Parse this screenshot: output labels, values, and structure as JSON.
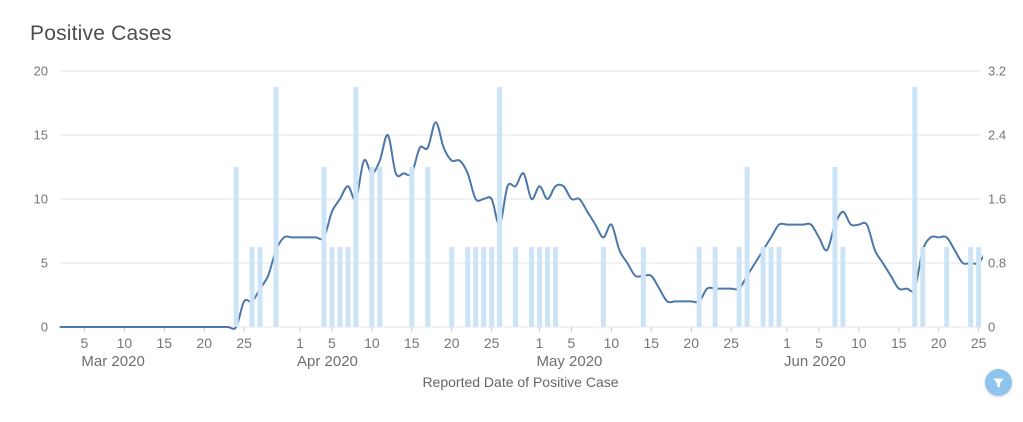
{
  "title": "Positive Cases",
  "x_axis_label": "Reported Date of Positive Case",
  "filter_button": {
    "icon": "funnel-icon",
    "color": "#8fc4ec"
  },
  "colors": {
    "line": "#4b77a9",
    "bar": "#cde4f7",
    "grid": "#e4e4e4",
    "tick_mark": "#cccccc",
    "axis_text": "#767676",
    "title_text": "#4e4e4e",
    "axis_title_text": "#666666"
  },
  "chart_data": {
    "type": "line+bar",
    "title": "Positive Cases",
    "xlabel": "Reported Date of Positive Case",
    "grid": "horizontal",
    "legend": "none",
    "x_range": [
      "2020-03-02",
      "2020-06-26"
    ],
    "y_left": {
      "min": 0,
      "max": 20,
      "ticks": [
        0,
        5,
        10,
        15,
        20
      ]
    },
    "y_right": {
      "min": 0,
      "max": 3.2,
      "ticks": [
        0,
        0.8,
        1.6,
        2.4,
        3.2
      ]
    },
    "x_months": [
      {
        "label": "Mar 2020",
        "month": 3,
        "day_ticks": [
          5,
          10,
          15,
          20,
          25
        ]
      },
      {
        "label": "Apr 2020",
        "month": 4,
        "day_ticks": [
          1,
          5,
          10,
          15,
          20,
          25
        ]
      },
      {
        "label": "May 2020",
        "month": 5,
        "day_ticks": [
          1,
          5,
          10,
          15,
          20,
          25
        ]
      },
      {
        "label": "Jun 2020",
        "month": 6,
        "day_ticks": [
          1,
          5,
          10,
          15,
          20,
          25
        ]
      }
    ],
    "series": [
      {
        "name": "positive-cases-line",
        "type": "line",
        "axis": "left",
        "color": "#4b77a9",
        "points": [
          [
            "2020-03-02",
            0
          ],
          [
            "2020-03-03",
            0
          ],
          [
            "2020-03-04",
            0
          ],
          [
            "2020-03-05",
            0
          ],
          [
            "2020-03-06",
            0
          ],
          [
            "2020-03-07",
            0
          ],
          [
            "2020-03-08",
            0
          ],
          [
            "2020-03-09",
            0
          ],
          [
            "2020-03-10",
            0
          ],
          [
            "2020-03-11",
            0
          ],
          [
            "2020-03-12",
            0
          ],
          [
            "2020-03-13",
            0
          ],
          [
            "2020-03-14",
            0
          ],
          [
            "2020-03-15",
            0
          ],
          [
            "2020-03-16",
            0
          ],
          [
            "2020-03-17",
            0
          ],
          [
            "2020-03-18",
            0
          ],
          [
            "2020-03-19",
            0
          ],
          [
            "2020-03-20",
            0
          ],
          [
            "2020-03-21",
            0
          ],
          [
            "2020-03-22",
            0
          ],
          [
            "2020-03-23",
            0
          ],
          [
            "2020-03-24",
            0
          ],
          [
            "2020-03-25",
            2
          ],
          [
            "2020-03-26",
            2
          ],
          [
            "2020-03-27",
            3
          ],
          [
            "2020-03-28",
            4
          ],
          [
            "2020-03-29",
            6
          ],
          [
            "2020-03-30",
            7
          ],
          [
            "2020-03-31",
            7
          ],
          [
            "2020-04-01",
            7
          ],
          [
            "2020-04-02",
            7
          ],
          [
            "2020-04-03",
            7
          ],
          [
            "2020-04-04",
            7
          ],
          [
            "2020-04-05",
            9
          ],
          [
            "2020-04-06",
            10
          ],
          [
            "2020-04-07",
            11
          ],
          [
            "2020-04-08",
            10
          ],
          [
            "2020-04-09",
            13
          ],
          [
            "2020-04-10",
            12
          ],
          [
            "2020-04-11",
            13
          ],
          [
            "2020-04-12",
            15
          ],
          [
            "2020-04-13",
            12
          ],
          [
            "2020-04-14",
            12
          ],
          [
            "2020-04-15",
            12
          ],
          [
            "2020-04-16",
            14
          ],
          [
            "2020-04-17",
            14
          ],
          [
            "2020-04-18",
            16
          ],
          [
            "2020-04-19",
            14
          ],
          [
            "2020-04-20",
            13
          ],
          [
            "2020-04-21",
            13
          ],
          [
            "2020-04-22",
            12
          ],
          [
            "2020-04-23",
            10
          ],
          [
            "2020-04-24",
            10
          ],
          [
            "2020-04-25",
            10
          ],
          [
            "2020-04-26",
            8
          ],
          [
            "2020-04-27",
            11
          ],
          [
            "2020-04-28",
            11
          ],
          [
            "2020-04-29",
            12
          ],
          [
            "2020-04-30",
            10
          ],
          [
            "2020-05-01",
            11
          ],
          [
            "2020-05-02",
            10
          ],
          [
            "2020-05-03",
            11
          ],
          [
            "2020-05-04",
            11
          ],
          [
            "2020-05-05",
            10
          ],
          [
            "2020-05-06",
            10
          ],
          [
            "2020-05-07",
            9
          ],
          [
            "2020-05-08",
            8
          ],
          [
            "2020-05-09",
            7
          ],
          [
            "2020-05-10",
            8
          ],
          [
            "2020-05-11",
            6
          ],
          [
            "2020-05-12",
            5
          ],
          [
            "2020-05-13",
            4
          ],
          [
            "2020-05-14",
            4
          ],
          [
            "2020-05-15",
            4
          ],
          [
            "2020-05-16",
            3
          ],
          [
            "2020-05-17",
            2
          ],
          [
            "2020-05-18",
            2
          ],
          [
            "2020-05-19",
            2
          ],
          [
            "2020-05-20",
            2
          ],
          [
            "2020-05-21",
            2
          ],
          [
            "2020-05-22",
            3
          ],
          [
            "2020-05-23",
            3
          ],
          [
            "2020-05-24",
            3
          ],
          [
            "2020-05-25",
            3
          ],
          [
            "2020-05-26",
            3
          ],
          [
            "2020-05-27",
            4
          ],
          [
            "2020-05-28",
            5
          ],
          [
            "2020-05-29",
            6
          ],
          [
            "2020-05-30",
            7
          ],
          [
            "2020-05-31",
            8
          ],
          [
            "2020-06-01",
            8
          ],
          [
            "2020-06-02",
            8
          ],
          [
            "2020-06-03",
            8
          ],
          [
            "2020-06-04",
            8
          ],
          [
            "2020-06-05",
            7
          ],
          [
            "2020-06-06",
            6
          ],
          [
            "2020-06-07",
            8
          ],
          [
            "2020-06-08",
            9
          ],
          [
            "2020-06-09",
            8
          ],
          [
            "2020-06-10",
            8
          ],
          [
            "2020-06-11",
            8
          ],
          [
            "2020-06-12",
            6
          ],
          [
            "2020-06-13",
            5
          ],
          [
            "2020-06-14",
            4
          ],
          [
            "2020-06-15",
            3
          ],
          [
            "2020-06-16",
            3
          ],
          [
            "2020-06-17",
            3
          ],
          [
            "2020-06-18",
            6
          ],
          [
            "2020-06-19",
            7
          ],
          [
            "2020-06-20",
            7
          ],
          [
            "2020-06-21",
            7
          ],
          [
            "2020-06-22",
            6
          ],
          [
            "2020-06-23",
            5
          ],
          [
            "2020-06-24",
            5
          ],
          [
            "2020-06-25",
            5
          ],
          [
            "2020-06-26",
            6
          ]
        ]
      },
      {
        "name": "daily-positive-bars",
        "type": "bar",
        "axis": "right",
        "color": "#cde4f7",
        "points": [
          [
            "2020-03-24",
            2.0
          ],
          [
            "2020-03-26",
            1.0
          ],
          [
            "2020-03-27",
            1.0
          ],
          [
            "2020-03-29",
            3.0
          ],
          [
            "2020-04-04",
            2.0
          ],
          [
            "2020-04-05",
            1.0
          ],
          [
            "2020-04-06",
            1.0
          ],
          [
            "2020-04-07",
            1.0
          ],
          [
            "2020-04-08",
            3.0
          ],
          [
            "2020-04-10",
            2.0
          ],
          [
            "2020-04-11",
            2.0
          ],
          [
            "2020-04-15",
            2.0
          ],
          [
            "2020-04-17",
            2.0
          ],
          [
            "2020-04-20",
            1.0
          ],
          [
            "2020-04-22",
            1.0
          ],
          [
            "2020-04-23",
            1.0
          ],
          [
            "2020-04-24",
            1.0
          ],
          [
            "2020-04-25",
            1.0
          ],
          [
            "2020-04-26",
            3.0
          ],
          [
            "2020-04-28",
            1.0
          ],
          [
            "2020-04-30",
            1.0
          ],
          [
            "2020-05-01",
            1.0
          ],
          [
            "2020-05-02",
            1.0
          ],
          [
            "2020-05-03",
            1.0
          ],
          [
            "2020-05-09",
            1.0
          ],
          [
            "2020-05-14",
            1.0
          ],
          [
            "2020-05-21",
            1.0
          ],
          [
            "2020-05-23",
            1.0
          ],
          [
            "2020-05-26",
            1.0
          ],
          [
            "2020-05-27",
            2.0
          ],
          [
            "2020-05-29",
            1.0
          ],
          [
            "2020-05-30",
            1.0
          ],
          [
            "2020-05-31",
            1.0
          ],
          [
            "2020-06-07",
            2.0
          ],
          [
            "2020-06-08",
            1.0
          ],
          [
            "2020-06-17",
            3.0
          ],
          [
            "2020-06-18",
            1.0
          ],
          [
            "2020-06-21",
            1.0
          ],
          [
            "2020-06-24",
            1.0
          ],
          [
            "2020-06-25",
            1.0
          ]
        ]
      }
    ]
  }
}
